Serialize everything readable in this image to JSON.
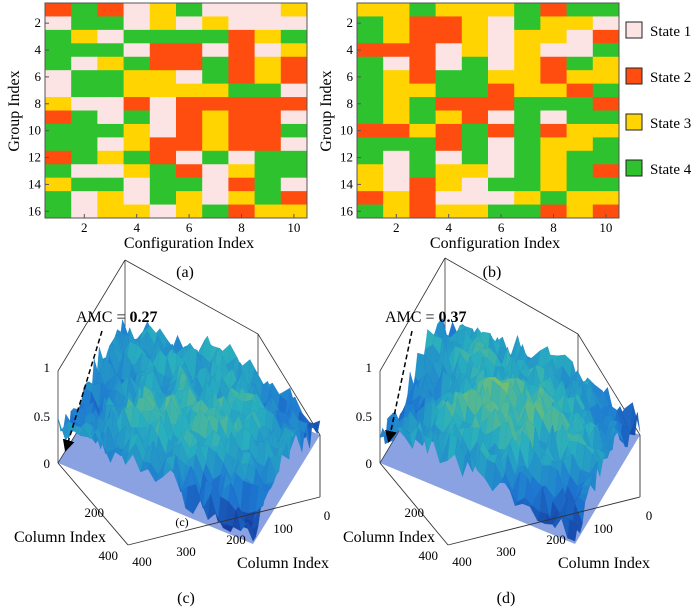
{
  "figure": {
    "states": {
      "labels": [
        "State 1",
        "State 2",
        "State 3",
        "State 4"
      ],
      "colors": [
        "#fce4e4",
        "#ff4d10",
        "#ffd400",
        "#2ec22e"
      ]
    },
    "panel_labels": [
      "(a)",
      "(b)",
      "(c)",
      "(d)"
    ]
  },
  "chart_data": [
    {
      "type": "heatmap",
      "panel": "(a)",
      "xlabel": "Configuration Index",
      "ylabel": "Group Index",
      "x_ticks": [
        2,
        4,
        6,
        8,
        10
      ],
      "y_ticks": [
        2,
        4,
        6,
        8,
        10,
        12,
        14,
        16
      ],
      "xlim": [
        1,
        10
      ],
      "ylim": [
        1,
        16
      ],
      "rows": [
        [
          2,
          4,
          2,
          1,
          3,
          4,
          1,
          1,
          1,
          3
        ],
        [
          1,
          4,
          4,
          1,
          3,
          1,
          3,
          1,
          1,
          1
        ],
        [
          4,
          3,
          1,
          4,
          4,
          4,
          4,
          2,
          3,
          4
        ],
        [
          4,
          4,
          4,
          1,
          2,
          2,
          1,
          2,
          1,
          3
        ],
        [
          4,
          1,
          3,
          4,
          2,
          2,
          4,
          2,
          3,
          2
        ],
        [
          1,
          4,
          4,
          3,
          3,
          1,
          4,
          2,
          3,
          2
        ],
        [
          1,
          4,
          4,
          3,
          3,
          3,
          3,
          4,
          4,
          1
        ],
        [
          3,
          1,
          1,
          2,
          1,
          2,
          2,
          2,
          2,
          2
        ],
        [
          2,
          4,
          1,
          4,
          1,
          2,
          3,
          2,
          2,
          1
        ],
        [
          4,
          4,
          4,
          3,
          1,
          2,
          3,
          2,
          2,
          4
        ],
        [
          4,
          4,
          1,
          3,
          2,
          2,
          3,
          2,
          2,
          1
        ],
        [
          2,
          4,
          3,
          4,
          2,
          1,
          4,
          1,
          4,
          4
        ],
        [
          4,
          1,
          1,
          3,
          4,
          2,
          1,
          3,
          4,
          4
        ],
        [
          3,
          4,
          4,
          1,
          4,
          4,
          1,
          2,
          4,
          1
        ],
        [
          4,
          1,
          3,
          1,
          4,
          3,
          1,
          3,
          4,
          2
        ],
        [
          4,
          1,
          3,
          3,
          1,
          3,
          4,
          2,
          3,
          3
        ]
      ]
    },
    {
      "type": "heatmap",
      "panel": "(b)",
      "xlabel": "Configuration Index",
      "ylabel": "Group Index",
      "x_ticks": [
        2,
        4,
        6,
        8,
        10
      ],
      "y_ticks": [
        2,
        4,
        6,
        8,
        10,
        12,
        14,
        16
      ],
      "xlim": [
        1,
        10
      ],
      "ylim": [
        1,
        16
      ],
      "rows": [
        [
          3,
          3,
          4,
          3,
          3,
          3,
          4,
          2,
          4,
          4
        ],
        [
          4,
          3,
          2,
          2,
          3,
          1,
          4,
          3,
          3,
          1
        ],
        [
          4,
          3,
          2,
          2,
          3,
          1,
          3,
          3,
          1,
          2
        ],
        [
          2,
          2,
          2,
          1,
          3,
          1,
          3,
          1,
          1,
          4
        ],
        [
          4,
          1,
          2,
          1,
          4,
          1,
          3,
          2,
          4,
          3
        ],
        [
          4,
          3,
          2,
          4,
          4,
          3,
          3,
          2,
          3,
          3
        ],
        [
          4,
          3,
          3,
          4,
          4,
          2,
          3,
          3,
          2,
          4
        ],
        [
          4,
          3,
          4,
          2,
          2,
          2,
          4,
          4,
          4,
          2
        ],
        [
          4,
          3,
          4,
          3,
          2,
          1,
          4,
          1,
          4,
          4
        ],
        [
          2,
          2,
          3,
          2,
          4,
          2,
          4,
          2,
          3,
          3
        ],
        [
          4,
          4,
          4,
          2,
          4,
          1,
          4,
          3,
          3,
          4
        ],
        [
          4,
          1,
          4,
          1,
          4,
          1,
          4,
          3,
          4,
          4
        ],
        [
          3,
          1,
          4,
          3,
          3,
          1,
          4,
          3,
          4,
          2
        ],
        [
          3,
          1,
          2,
          3,
          1,
          4,
          4,
          3,
          4,
          4
        ],
        [
          2,
          3,
          2,
          1,
          1,
          1,
          3,
          4,
          3,
          3
        ],
        [
          4,
          3,
          2,
          3,
          3,
          4,
          4,
          2,
          3,
          2
        ]
      ]
    },
    {
      "type": "surface",
      "panel": "(c)",
      "annotation_label": "AMC = ",
      "annotation_value": "0.27",
      "z_ticks": [
        "0",
        "0.5",
        "1"
      ],
      "row_axis": {
        "label": "Column Index",
        "ticks": [
          "200",
          "400"
        ]
      },
      "col_axis": {
        "label": "Column Index",
        "ticks": [
          "400",
          "300",
          "200",
          "100",
          "0"
        ]
      },
      "zlim": [
        0,
        1
      ],
      "xlim": [
        0,
        400
      ],
      "ylim": [
        0,
        400
      ],
      "marker": "(c)"
    },
    {
      "type": "surface",
      "panel": "(d)",
      "annotation_label": "AMC = ",
      "annotation_value": "0.37",
      "z_ticks": [
        "0",
        "0.5",
        "1"
      ],
      "row_axis": {
        "label": "Column Index",
        "ticks": [
          "200",
          "400"
        ]
      },
      "col_axis": {
        "label": "Column Index",
        "ticks": [
          "400",
          "300",
          "200",
          "100",
          "0"
        ]
      },
      "zlim": [
        0,
        1
      ],
      "xlim": [
        0,
        400
      ],
      "ylim": [
        0,
        400
      ]
    }
  ]
}
